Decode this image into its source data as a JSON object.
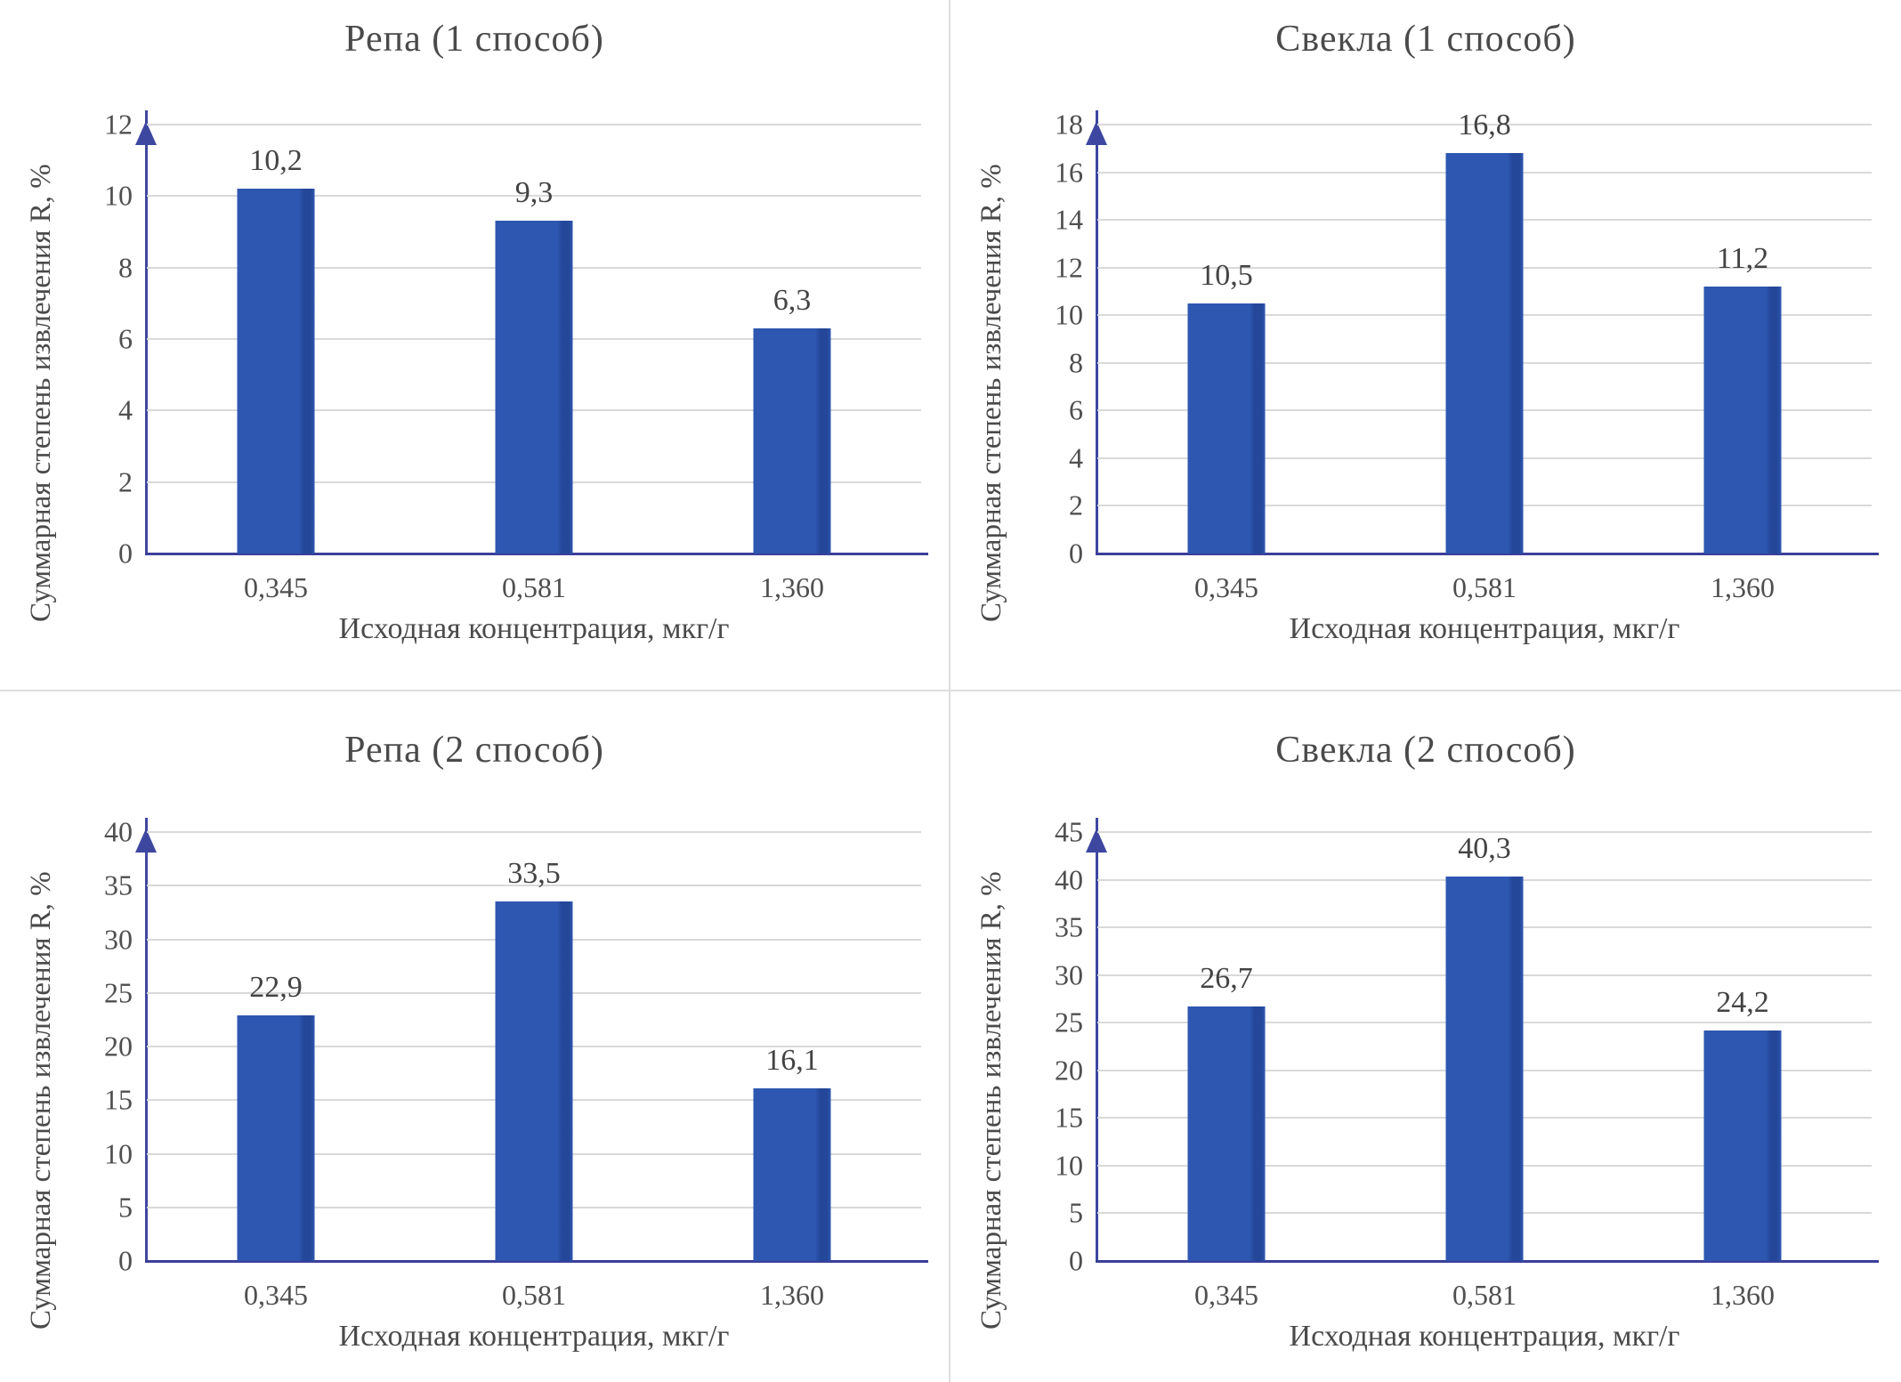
{
  "colors": {
    "bar_fill": "#2d57b1",
    "bar_edge": "#24479a",
    "axis_line": "#3e47a0",
    "baseline": "#3b3f99",
    "gridline": "#d9d9d9",
    "text": "#4c4c4c"
  },
  "chart_data": [
    {
      "type": "bar",
      "title": "Репа (1 способ)",
      "ylabel": "Суммарная степень извлечения R, %",
      "xlabel": "Исходная концентрация, мкг/г",
      "categories": [
        "0,345",
        "0,581",
        "1,360"
      ],
      "values": [
        10.2,
        9.3,
        6.3
      ],
      "value_labels": [
        "10,2",
        "9,3",
        "6,3"
      ],
      "ylim": [
        0,
        12
      ],
      "ystep": 2,
      "yticks": [
        "0",
        "2",
        "4",
        "6",
        "8",
        "10",
        "12"
      ],
      "grid": true,
      "legend_position": "none"
    },
    {
      "type": "bar",
      "title": "Свекла (1 способ)",
      "ylabel": "Суммарная степень извлечения R, %",
      "xlabel": "Исходная концентрация, мкг/г",
      "categories": [
        "0,345",
        "0,581",
        "1,360"
      ],
      "values": [
        10.5,
        16.8,
        11.2
      ],
      "value_labels": [
        "10,5",
        "16,8",
        "11,2"
      ],
      "ylim": [
        0,
        18
      ],
      "ystep": 2,
      "yticks": [
        "0",
        "2",
        "4",
        "6",
        "8",
        "10",
        "12",
        "14",
        "16",
        "18"
      ],
      "grid": true,
      "legend_position": "none"
    },
    {
      "type": "bar",
      "title": "Репа (2 способ)",
      "ylabel": "Суммарная степень извлечения R, %",
      "xlabel": "Исходная концентрация, мкг/г",
      "categories": [
        "0,345",
        "0,581",
        "1,360"
      ],
      "values": [
        22.9,
        33.5,
        16.1
      ],
      "value_labels": [
        "22,9",
        "33,5",
        "16,1"
      ],
      "ylim": [
        0,
        40
      ],
      "ystep": 5,
      "yticks": [
        "0",
        "5",
        "10",
        "15",
        "20",
        "25",
        "30",
        "35",
        "40"
      ],
      "grid": true,
      "legend_position": "none"
    },
    {
      "type": "bar",
      "title": "Свекла (2 способ)",
      "ylabel": "Суммарная степень извлечения R, %",
      "xlabel": "Исходная концентрация, мкг/г",
      "categories": [
        "0,345",
        "0,581",
        "1,360"
      ],
      "values": [
        26.7,
        40.3,
        24.2
      ],
      "value_labels": [
        "26,7",
        "40,3",
        "24,2"
      ],
      "ylim": [
        0,
        45
      ],
      "ystep": 5,
      "yticks": [
        "0",
        "5",
        "10",
        "15",
        "20",
        "25",
        "30",
        "35",
        "40",
        "45"
      ],
      "grid": true,
      "legend_position": "none"
    }
  ]
}
